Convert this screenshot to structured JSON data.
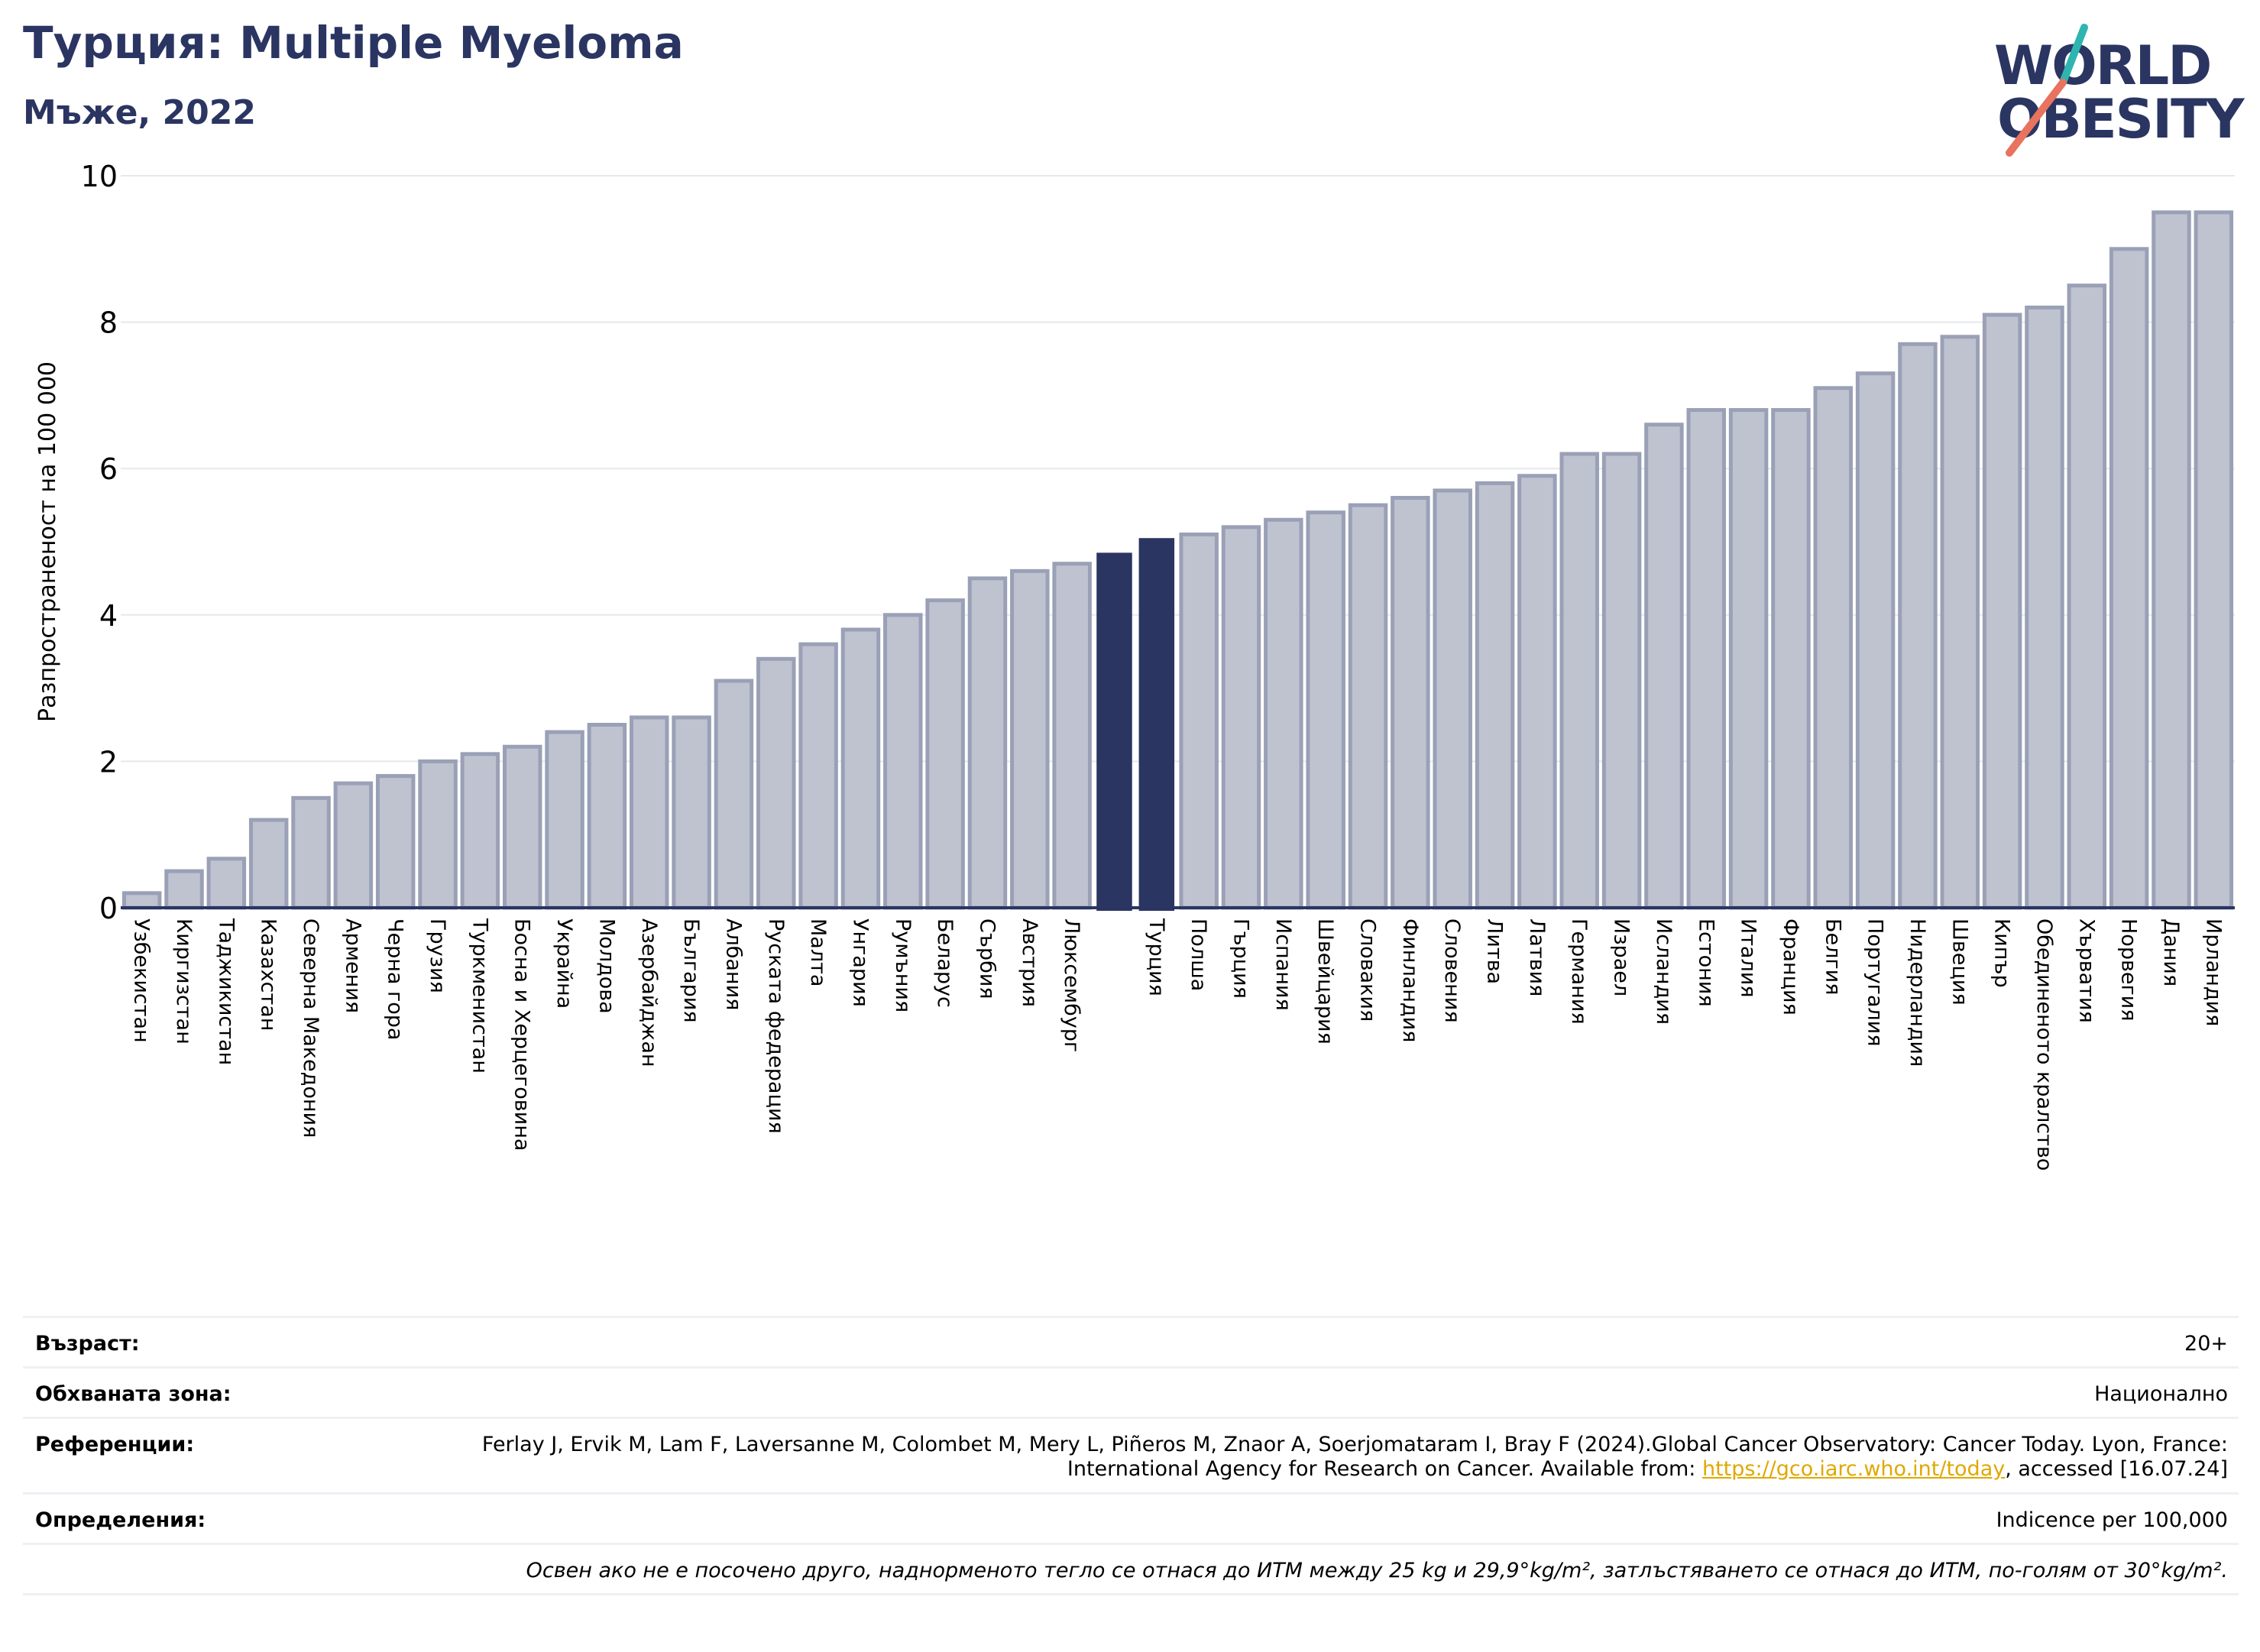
{
  "header": {
    "title": "Турция: Multiple Myeloma",
    "subtitle": "Мъже, 2022"
  },
  "logo": {
    "line1": "WORLD",
    "line2": "OBESITY"
  },
  "colors": {
    "bar": "#bfc3d0",
    "bar_stroke": "#9aa0b6",
    "highlight": "#2b3562",
    "grid": "#e6e8ee",
    "axis": "#2b3562",
    "link": "#e0a800"
  },
  "chart_data": {
    "type": "bar",
    "ylabel": "Разпространеност  на 100 000",
    "ylim": [
      0,
      10
    ],
    "yticks": [
      0,
      2,
      4,
      6,
      8,
      10
    ],
    "grid": true,
    "categories": [
      "Узбекистан",
      "Киргизстан",
      "Таджикистан",
      "Казахстан",
      "Северна Македония",
      "Армения",
      "Черна гора",
      "Грузия",
      "Туркменистан",
      "Босна и Херцеговина",
      "Украйна",
      "Молдова",
      "Азербайджан",
      "България",
      "Албания",
      "Руската федерация",
      "Малта",
      "Унгария",
      "Румъния",
      "Беларус",
      "Сърбия",
      "Австрия",
      "Люксембург",
      "",
      "Турция",
      "Полша",
      "Гърция",
      "Испания",
      "Швейцария",
      "Словакия",
      "Финландия",
      "Словения",
      "Литва",
      "Латвия",
      "Германия",
      "Израел",
      "Исландия",
      "Естония",
      "Италия",
      "Франция",
      "Белгия",
      "Португалия",
      "Нидерландия",
      "Швеция",
      "Кипър",
      "Обединеното кралство",
      "Хърватия",
      "Норвегия",
      "Дания",
      "Ирландия"
    ],
    "values": [
      0.2,
      0.5,
      0.67,
      1.2,
      1.5,
      1.7,
      1.8,
      2.0,
      2.1,
      2.2,
      2.4,
      2.5,
      2.6,
      2.6,
      3.1,
      3.4,
      3.6,
      3.8,
      4.0,
      4.2,
      4.5,
      4.6,
      4.7,
      4.85,
      5.05,
      5.1,
      5.2,
      5.3,
      5.4,
      5.5,
      5.6,
      5.7,
      5.8,
      5.9,
      6.2,
      6.2,
      6.6,
      6.8,
      6.8,
      6.8,
      7.1,
      7.3,
      7.7,
      7.8,
      8.1,
      8.2,
      8.5,
      9.0,
      9.5,
      9.5
    ],
    "highlighted": [
      23,
      24
    ]
  },
  "info": {
    "age_label": "Възраст:",
    "age_value": "20+",
    "coverage_label": "Обхваната зона:",
    "coverage_value": "Национално",
    "references_label": "Референции:",
    "references_text": "Ferlay J, Ervik M, Lam F, Laversanne M, Colombet M, Mery L, Piñeros M, Znaor A, Soerjomataram I, Bray F (2024).Global Cancer Observatory: Cancer Today. Lyon, France: International Agency for Research on Cancer. Available from: ",
    "references_link": "https://gco.iarc.who.int/today",
    "references_suffix": ", accessed [16.07.24]",
    "definitions_label": "Определения:",
    "definitions_value": "Indicence per 100,000",
    "note": "Освен ако не е посочено друго, наднорменото тегло се отнася до ИТМ между 25 kg и 29,9°kg/m², затлъстяването се отнася до ИТМ, по-голям от 30°kg/m²."
  }
}
